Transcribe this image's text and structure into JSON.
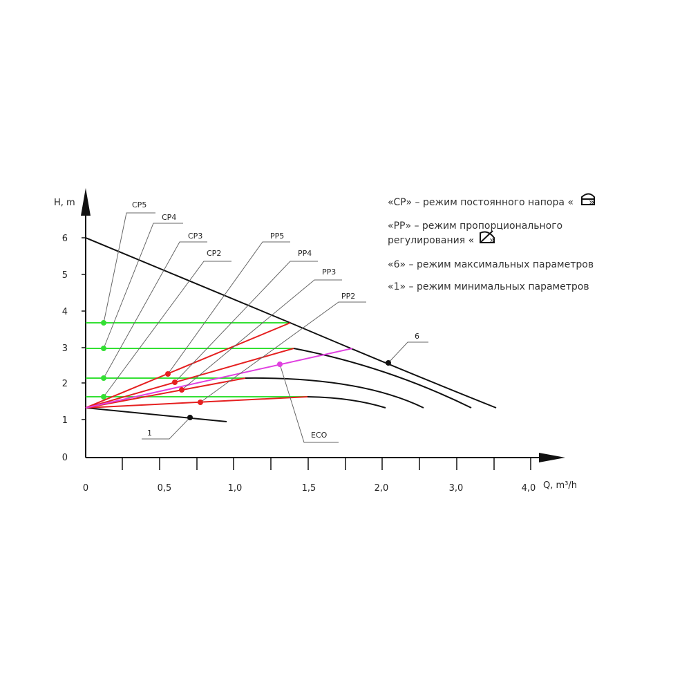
{
  "axes": {
    "y_label": "H, m",
    "x_label": "Q, m³/h",
    "y_ticks": [
      "0",
      "1",
      "2",
      "3",
      "4",
      "5",
      "6"
    ],
    "x_ticks": [
      "0",
      "0,5",
      "1,0",
      "1,5",
      "2,0",
      "3,0",
      "4,0"
    ]
  },
  "curve_labels": {
    "cp5": "CP5",
    "cp4": "CP4",
    "cp3": "CP3",
    "cp2": "CP2",
    "pp5": "PP5",
    "pp4": "PP4",
    "pp3": "PP3",
    "pp2": "PP2",
    "max": "6",
    "min": "1",
    "eco": "ECO"
  },
  "legend": [
    {
      "text": "«CP» – режим постоянного напора «",
      "close": "»"
    },
    {
      "text": "«PP» – режим пропорционального",
      "text2": "регулирования «",
      "close": "»"
    },
    {
      "text": "«6» – режим максимальных параметров"
    },
    {
      "text": "«1» – режим минимальных параметров"
    }
  ]
}
